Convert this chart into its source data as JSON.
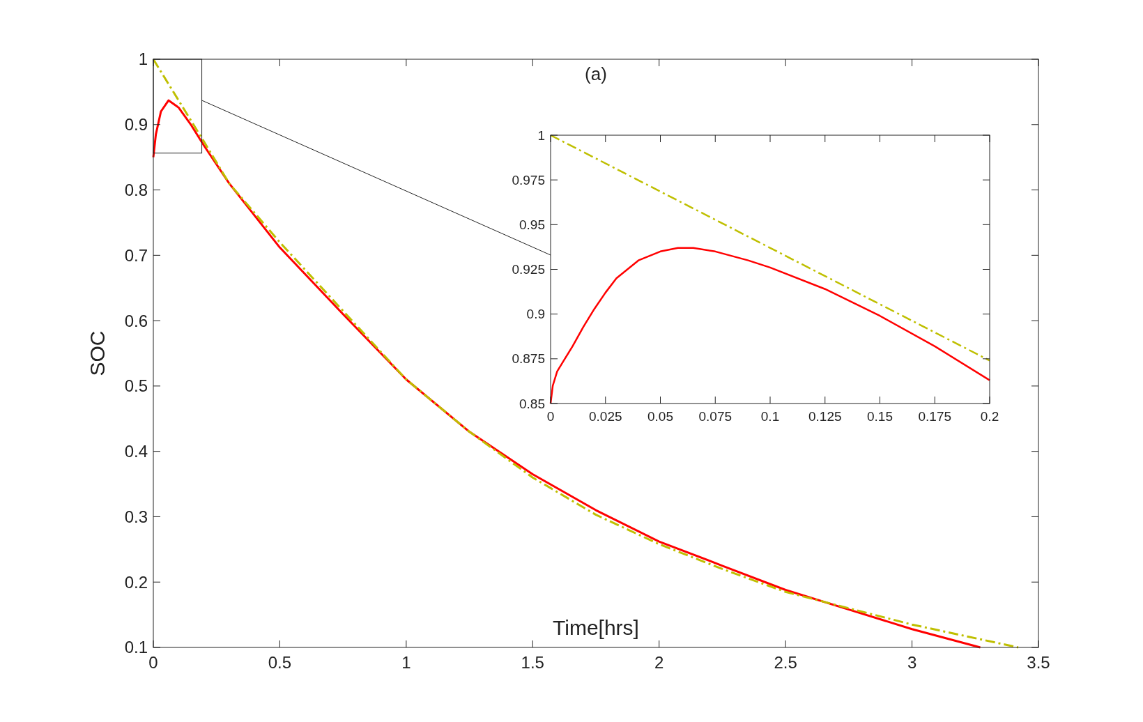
{
  "chart_data": [
    {
      "type": "line",
      "title": "(a)",
      "xlabel": "Time[hrs]",
      "ylabel": "SOC",
      "xlim": [
        0,
        3.5
      ],
      "ylim": [
        0.1,
        1
      ],
      "xticks": [
        0,
        0.5,
        1,
        1.5,
        2,
        2.5,
        3,
        3.5
      ],
      "yticks": [
        0.1,
        0.2,
        0.3,
        0.4,
        0.5,
        0.6,
        0.7,
        0.8,
        0.9,
        1
      ],
      "grid": false,
      "series": [
        {
          "color": "#ff0000",
          "line_style": "solid",
          "x": [
            0,
            0.01,
            0.03,
            0.06,
            0.1,
            0.15,
            0.2,
            0.3,
            0.5,
            0.75,
            1,
            1.25,
            1.5,
            1.75,
            2,
            2.25,
            2.5,
            2.75,
            3,
            3.27
          ],
          "values": [
            0.85,
            0.885,
            0.92,
            0.937,
            0.926,
            0.899,
            0.868,
            0.81,
            0.712,
            0.61,
            0.51,
            0.43,
            0.365,
            0.31,
            0.262,
            0.225,
            0.188,
            0.158,
            0.128,
            0.1
          ]
        },
        {
          "color": "#bfbf00",
          "line_style": "dashed",
          "x": [
            0,
            0.2,
            0.3,
            0.5,
            0.75,
            1,
            1.25,
            1.5,
            1.75,
            2,
            2.25,
            2.5,
            2.75,
            3,
            3.42
          ],
          "values": [
            1,
            0.874,
            0.81,
            0.72,
            0.615,
            0.51,
            0.43,
            0.36,
            0.303,
            0.258,
            0.22,
            0.185,
            0.16,
            0.135,
            0.1
          ]
        }
      ]
    },
    {
      "type": "line",
      "xlim": [
        0,
        0.2
      ],
      "ylim": [
        0.85,
        1
      ],
      "xticks": [
        0,
        0.025,
        0.05,
        0.075,
        0.1,
        0.125,
        0.15,
        0.175,
        0.2
      ],
      "yticks": [
        0.85,
        0.875,
        0.9,
        0.925,
        0.95,
        0.975,
        1
      ],
      "grid": false,
      "series": [
        {
          "color": "#ff0000",
          "line_style": "solid",
          "x": [
            0,
            0.001,
            0.003,
            0.006,
            0.01,
            0.015,
            0.02,
            0.025,
            0.03,
            0.04,
            0.05,
            0.058,
            0.065,
            0.075,
            0.09,
            0.1,
            0.125,
            0.15,
            0.175,
            0.2
          ],
          "values": [
            0.85,
            0.86,
            0.868,
            0.874,
            0.882,
            0.893,
            0.903,
            0.912,
            0.92,
            0.93,
            0.935,
            0.937,
            0.937,
            0.935,
            0.93,
            0.926,
            0.914,
            0.899,
            0.882,
            0.863
          ]
        },
        {
          "color": "#bfbf00",
          "line_style": "dashed",
          "x": [
            0,
            0.2
          ],
          "values": [
            1,
            0.874
          ]
        }
      ]
    }
  ]
}
